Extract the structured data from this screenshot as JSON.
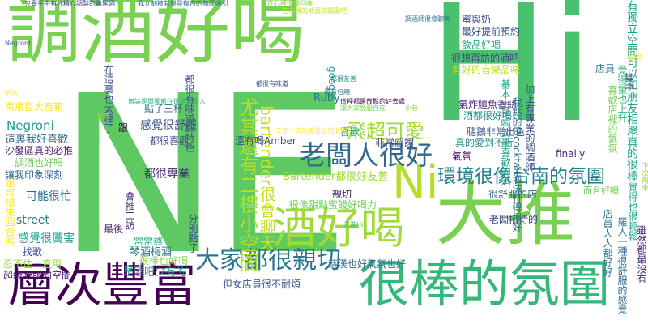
{
  "word_cloud": {
    "words": [
      {
        "text": "調酒好喝",
        "color": "#7ad151"
      },
      {
        "text": "Hi",
        "color": "#4ac16d"
      },
      {
        "text": "NE",
        "color": "#5ec962"
      },
      {
        "text": "大推",
        "color": "#7ad151"
      },
      {
        "text": "很棒的氛圍",
        "color": "#35b779"
      },
      {
        "text": "層次豐富",
        "color": "#440154"
      },
      {
        "text": "酒好喝",
        "color": "#a0da39"
      },
      {
        "text": "Ni",
        "color": "#b5de2b"
      },
      {
        "text": "老闆人很好",
        "color": "#31688e"
      },
      {
        "text": "大家都很親切",
        "color": "#2a788e"
      },
      {
        "text": "環境很像台南的氛圍",
        "color": "#26828e"
      },
      {
        "text": "飛超可愛",
        "color": "#a0da39"
      },
      {
        "text": "尤其還有二樓小空間",
        "color": "#b5de2b"
      },
      {
        "text": "bartender很會聊天",
        "color": "#c8e020"
      },
      {
        "text": "有獨立空間可以和朋友相聚真的很棒",
        "color": "#20a486"
      },
      {
        "text": "Negroni",
        "color": "#1f9e89"
      },
      {
        "text": "這裏我好喜歡",
        "color": "#31688e"
      },
      {
        "text": "兩瓶巨大音箱",
        "color": "#fde725"
      },
      {
        "text": "感覺很舒服",
        "color": "#3b528b"
      },
      {
        "text": "都很喜歡",
        "color": "#3e4989"
      },
      {
        "text": "都很專業",
        "color": "#482878"
      },
      {
        "text": "可能很忙",
        "color": "#2c728e"
      },
      {
        "text": "讓我印象深刻",
        "color": "#31688e"
      },
      {
        "text": "沙發區真的必推",
        "color": "#481f70"
      },
      {
        "text": "調酒也好喝",
        "color": "#6ece58"
      },
      {
        "text": "street",
        "color": "#2a788e"
      },
      {
        "text": "感覺很厲害",
        "color": "#1f9e89"
      },
      {
        "text": "找歌",
        "color": "#3e4989"
      },
      {
        "text": "最後",
        "color": "#481f70"
      },
      {
        "text": "常常熬",
        "color": "#22a884"
      },
      {
        "text": "琴酒梅酒",
        "color": "#2a788e"
      },
      {
        "text": "是酒吧少有的",
        "color": "#1fa187"
      },
      {
        "text": "很棒也好喝",
        "color": "#84d44b"
      },
      {
        "text": "忍不住一直用",
        "color": "#8fd744"
      },
      {
        "text": "超級舒服的空間",
        "color": "#481f70"
      },
      {
        "text": "跟可惜來回合照",
        "color": "#fde725"
      },
      {
        "text": "Ruby",
        "color": "#2c728e"
      },
      {
        "text": "Bartender都很好友善",
        "color": "#a0da39"
      },
      {
        "text": "google",
        "color": "#1f9e89"
      },
      {
        "text": "喜歡",
        "color": "#1f9e89"
      },
      {
        "text": "還有喝Amber",
        "color": "#3b528b"
      },
      {
        "text": "非常感謝",
        "color": "#3e4989"
      },
      {
        "text": "很像甜點蜜餞好喝力",
        "color": "#6ece58"
      },
      {
        "text": "親切",
        "color": "#481f70"
      },
      {
        "text": "聰鵝非常出色",
        "color": "#3b528b"
      },
      {
        "text": "真的愛到不行",
        "color": "#21918c"
      },
      {
        "text": "氣氛",
        "color": "#440154"
      },
      {
        "text": "蔡漢也好氣氛也好",
        "color": "#31688e"
      },
      {
        "text": "但女店員很不耐煩",
        "color": "#3b528b"
      },
      {
        "text": "老闆招待的",
        "color": "#3e4989"
      },
      {
        "text": "很舒服的店",
        "color": "#31688e"
      },
      {
        "text": "氣炸鱷魚香絲",
        "color": "#482878"
      },
      {
        "text": "酒都很好喝",
        "color": "#21918c"
      },
      {
        "text": "蜜與奶",
        "color": "#3e4989"
      },
      {
        "text": "最好提前預約",
        "color": "#3b528b"
      },
      {
        "text": "飲品好喝",
        "color": "#20a486"
      },
      {
        "text": "很想再訪的酒吧",
        "color": "#3e4989"
      },
      {
        "text": "有好的音樂品味",
        "color": "#c8e020"
      },
      {
        "text": "店員",
        "color": "#2a788e"
      },
      {
        "text": "點了三杯",
        "color": "#31688e"
      },
      {
        "text": "都很有味道跟特色",
        "color": "#3b528b"
      },
      {
        "text": "在這裏也太棒了",
        "color": "#3e4989"
      },
      {
        "text": "分別點了",
        "color": "#3e4989"
      },
      {
        "text": "會推二訪",
        "color": "#472d7b"
      },
      {
        "text": "其中",
        "color": "#3b528b"
      },
      {
        "text": "跟",
        "color": "#440154"
      },
      {
        "text": "finally",
        "color": "#482878"
      },
      {
        "text": "我點的是cocktail泡沫打得很好",
        "color": "#2c728e"
      },
      {
        "text": "基本上是喝到最喜歡的酒",
        "color": "#1f9e89"
      },
      {
        "text": "加上有專業的調酒師",
        "color": "#3e4989"
      },
      {
        "text": "下次再來",
        "color": "#a0da39"
      },
      {
        "text": "覺得量也上升",
        "color": "#35b779"
      },
      {
        "text": "喜歡店裡的氣氛",
        "color": "#7ad151"
      },
      {
        "text": "覺得也很輕鬆",
        "color": "#20a486"
      },
      {
        "text": "羅勒",
        "color": "#fde725"
      },
      {
        "text": "羅人一種很舒服的感覺",
        "color": "#31688e"
      },
      {
        "text": "雖然都最沒有",
        "color": "#472d7b"
      },
      {
        "text": "店員人人都好好",
        "color": "#2a788e"
      },
      {
        "text": "而且好喝",
        "color": "#6ece58"
      },
      {
        "text": "只要手中有杯精心調製的雞尾酒",
        "color": "#3e4989"
      },
      {
        "text": "我立刻被其量發復古的氛圍吸引",
        "color": "#31688e"
      },
      {
        "text": "在心裡慢慢回味",
        "color": "#8fd744"
      },
      {
        "text": "在古樸的地面刻製圖吧",
        "color": "#c8e020"
      },
      {
        "text": "都很有味道",
        "color": "#3b528b"
      },
      {
        "text": "讓大家舒服自在",
        "color": "#7ad151"
      },
      {
        "text": "還有包廂",
        "color": "#2a788e"
      },
      {
        "text": "無論是單獨前往還是與友人",
        "color": "#35b779"
      },
      {
        "text": "這裡都是放鬆的好去處",
        "color": "#440154"
      },
      {
        "text": "都很友善",
        "color": "#21918c"
      },
      {
        "text": "調酒師很會聊天",
        "color": "#2c728e"
      },
      {
        "text": "Negroni",
        "color": "#3b528b"
      },
      {
        "text": "吧台",
        "color": "#fde725"
      },
      {
        "text": "空間",
        "color": "#a0da39"
      },
      {
        "text": "小巷",
        "color": "#84d44b"
      },
      {
        "text": "工作一天的疲勞立刻消散",
        "color": "#fde725"
      },
      {
        "text": "走進Hi",
        "color": "#35b779"
      }
    ]
  }
}
